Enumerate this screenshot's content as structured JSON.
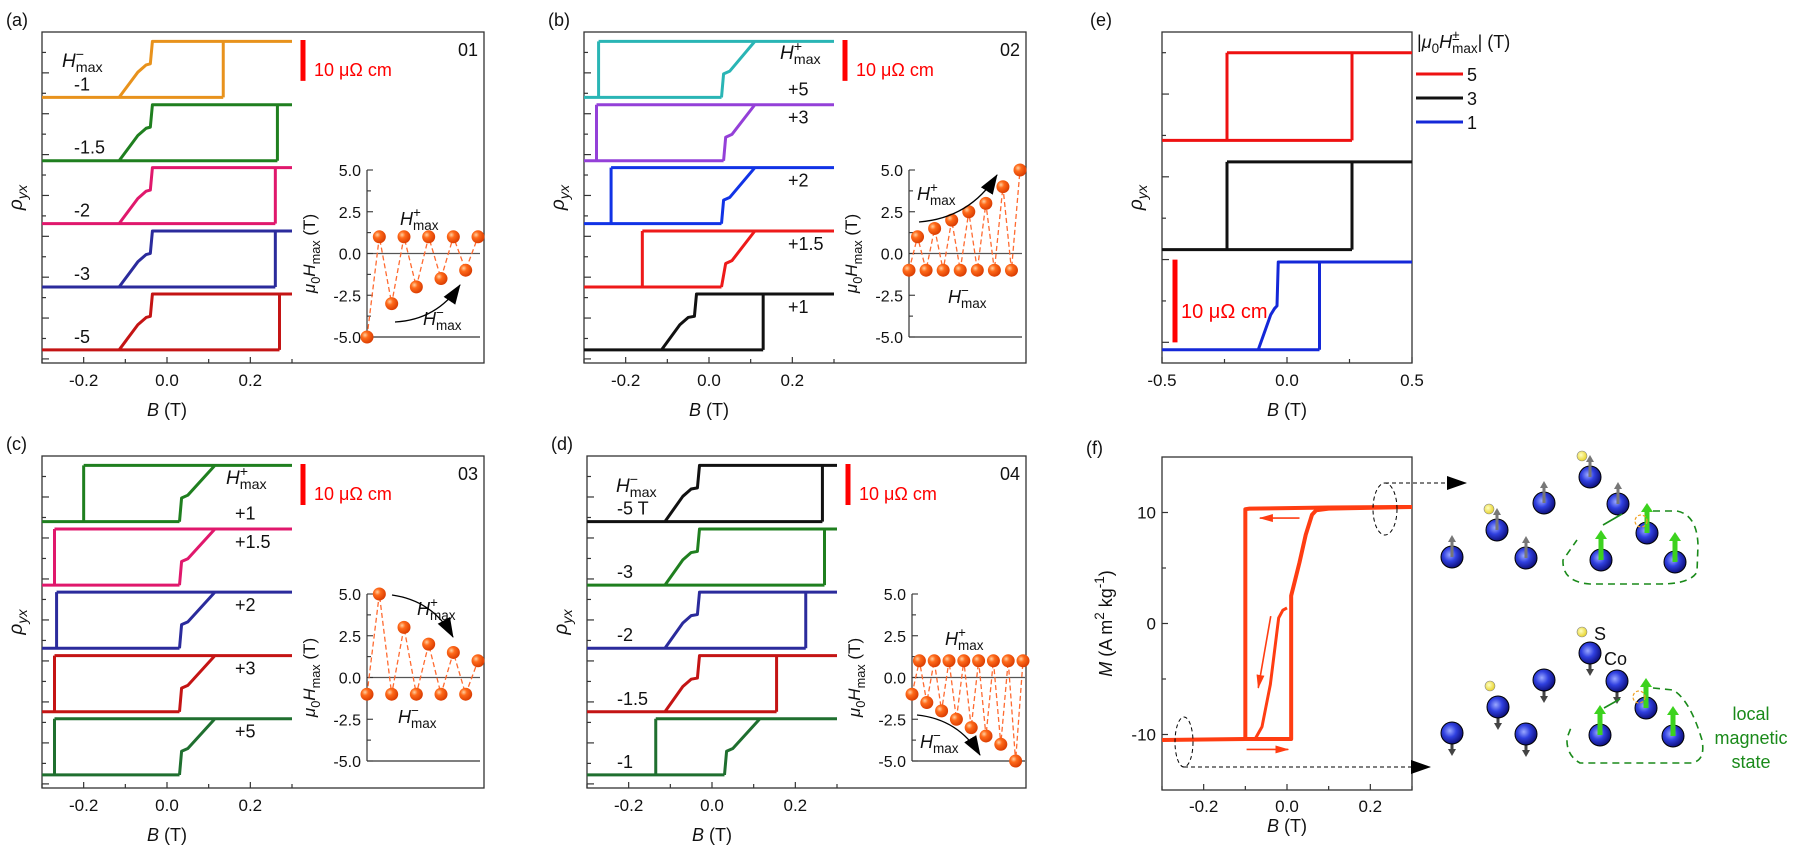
{
  "labels": {
    "rho": [
      {
        "t": "ρ",
        "i": 1
      },
      {
        "t": "yx",
        "sub": 1,
        "i": 1
      }
    ],
    "B": [
      {
        "t": "B",
        "i": 1
      },
      {
        "t": " (T)"
      }
    ],
    "inset_y": [
      {
        "t": "μ",
        "i": 1
      },
      {
        "t": "0",
        "sub": 1
      },
      {
        "t": "H",
        "i": 1
      },
      {
        "t": "max",
        "sub": 1
      },
      {
        "t": " (T)"
      }
    ],
    "H_plus": [
      {
        "t": "H",
        "i": 1
      },
      {
        "t": "+",
        "sup": 1
      },
      {
        "t": "max",
        "sub": 1
      }
    ],
    "H_minus": [
      {
        "t": "H",
        "i": 1
      },
      {
        "t": "−",
        "sup": 1
      },
      {
        "t": "max",
        "sub": 1
      }
    ],
    "M": [
      {
        "t": "M",
        "i": 1
      },
      {
        "t": " (A m"
      },
      {
        "t": "2",
        "sup": 1
      },
      {
        "t": " kg"
      },
      {
        "t": "-1",
        "sup": 1
      },
      {
        "t": ")"
      }
    ],
    "scalebar": "10 μΩ cm"
  },
  "chart_data": [
    {
      "panel": "(a)",
      "id_label": "01",
      "type": "line",
      "xlim": [
        -0.3,
        0.3
      ],
      "xticks": [
        -0.2,
        0,
        0.2
      ],
      "xtick_labels": [
        "-0.2",
        "0.0",
        "0.2"
      ],
      "ylim_uohm_cm": [
        0,
        81
      ],
      "scalebar_value": 10,
      "header": "H_minus",
      "label_side": "left",
      "curves": [
        {
          "label": "-1",
          "color": "#e8921c",
          "base": 65,
          "height": 13.7,
          "down": 0.135,
          "up": [
            [
              -0.115,
              0
            ],
            [
              -0.07,
              0.45
            ],
            [
              -0.05,
              0.58
            ],
            [
              -0.04,
              0.6
            ],
            [
              -0.035,
              1
            ]
          ]
        },
        {
          "label": "-1.5",
          "color": "#1f7f1f",
          "base": 49.5,
          "height": 13.7,
          "down": 0.265,
          "up": [
            [
              -0.115,
              0
            ],
            [
              -0.07,
              0.45
            ],
            [
              -0.05,
              0.58
            ],
            [
              -0.04,
              0.6
            ],
            [
              -0.035,
              1
            ]
          ]
        },
        {
          "label": "-2",
          "color": "#e0186c",
          "base": 34.1,
          "height": 13.7,
          "down": 0.26,
          "up": [
            [
              -0.115,
              0
            ],
            [
              -0.07,
              0.45
            ],
            [
              -0.05,
              0.58
            ],
            [
              -0.04,
              0.6
            ],
            [
              -0.035,
              1
            ]
          ]
        },
        {
          "label": "-3",
          "color": "#2b2b9c",
          "base": 18.6,
          "height": 13.7,
          "down": 0.26,
          "up": [
            [
              -0.115,
              0
            ],
            [
              -0.07,
              0.45
            ],
            [
              -0.05,
              0.58
            ],
            [
              -0.04,
              0.6
            ],
            [
              -0.035,
              1
            ]
          ]
        },
        {
          "label": "-5",
          "color": "#c41414",
          "base": 3.2,
          "height": 13.7,
          "down": 0.27,
          "up": [
            [
              -0.115,
              0
            ],
            [
              -0.07,
              0.45
            ],
            [
              -0.05,
              0.58
            ],
            [
              -0.04,
              0.6
            ],
            [
              -0.035,
              1
            ]
          ]
        }
      ],
      "inset": {
        "ylim": [
          -5,
          5
        ],
        "yticks": [
          5,
          2.5,
          0,
          -2.5,
          -5
        ],
        "ytick_labels": [
          "5.0",
          "2.5",
          "0.0",
          "-2.5",
          "-5.0"
        ],
        "values": [
          -5,
          1,
          -3,
          1,
          -2,
          1,
          -1.5,
          1,
          -1,
          1
        ],
        "color": "#ff5a12"
      }
    },
    {
      "panel": "(b)",
      "id_label": "02",
      "type": "line",
      "xlim": [
        -0.3,
        0.3
      ],
      "xticks": [
        -0.2,
        0,
        0.2
      ],
      "xtick_labels": [
        "-0.2",
        "0.0",
        "0.2"
      ],
      "ylim_uohm_cm": [
        0,
        81
      ],
      "scalebar_value": 10,
      "header": "H_plus",
      "label_side": "right",
      "curves": [
        {
          "label": "+5",
          "color": "#2ab5b5",
          "base": 65,
          "height": 13.7,
          "down": -0.265,
          "up": [
            [
              0.03,
              0
            ],
            [
              0.035,
              0.42
            ],
            [
              0.05,
              0.47
            ],
            [
              0.11,
              1
            ]
          ]
        },
        {
          "label": "+3",
          "color": "#9440d8",
          "base": 49.5,
          "height": 13.7,
          "down": -0.27,
          "up": [
            [
              0.035,
              0
            ],
            [
              0.04,
              0.42
            ],
            [
              0.055,
              0.47
            ],
            [
              0.11,
              1
            ]
          ]
        },
        {
          "label": "+2",
          "color": "#1133e6",
          "base": 34.1,
          "height": 13.7,
          "down": -0.235,
          "up": [
            [
              0.03,
              0
            ],
            [
              0.035,
              0.42
            ],
            [
              0.05,
              0.47
            ],
            [
              0.11,
              1
            ]
          ]
        },
        {
          "label": "+1.5",
          "color": "#ee1a1a",
          "base": 18.6,
          "height": 13.7,
          "down": -0.16,
          "up": [
            [
              0.03,
              0
            ],
            [
              0.04,
              0.42
            ],
            [
              0.055,
              0.47
            ],
            [
              0.11,
              1
            ]
          ]
        },
        {
          "label": "+1",
          "color": "#111111",
          "base": 3.2,
          "height": 13.7,
          "down": 0.13,
          "up": [
            [
              -0.114,
              0
            ],
            [
              -0.07,
              0.45
            ],
            [
              -0.05,
              0.58
            ],
            [
              -0.035,
              0.6
            ],
            [
              -0.03,
              1
            ]
          ]
        }
      ],
      "inset": {
        "ylim": [
          -5,
          5
        ],
        "yticks": [
          5,
          2.5,
          0,
          -2.5,
          -5
        ],
        "ytick_labels": [
          "5.0",
          "2.5",
          "0.0",
          "-2.5",
          "-5.0"
        ],
        "values": [
          -1,
          1,
          -1,
          1.5,
          -1,
          2,
          -1,
          2.5,
          -1,
          3,
          -1,
          4,
          -1,
          5
        ],
        "color": "#ff5a12"
      }
    },
    {
      "panel": "(c)",
      "id_label": "03",
      "type": "line",
      "xlim": [
        -0.3,
        0.3
      ],
      "xticks": [
        -0.2,
        0,
        0.2
      ],
      "xtick_labels": [
        "-0.2",
        "0.0",
        "0.2"
      ],
      "ylim_uohm_cm": [
        0,
        81
      ],
      "scalebar_value": 10,
      "header": "H_plus",
      "label_side": "right",
      "curves": [
        {
          "label": "+1",
          "color": "#1f7f1f",
          "base": 65,
          "height": 13.7,
          "down": -0.2,
          "up": [
            [
              0.03,
              0
            ],
            [
              0.035,
              0.42
            ],
            [
              0.05,
              0.47
            ],
            [
              0.115,
              1
            ]
          ]
        },
        {
          "label": "+1.5",
          "color": "#e0186c",
          "base": 49.5,
          "height": 13.7,
          "down": -0.27,
          "up": [
            [
              0.03,
              0
            ],
            [
              0.035,
              0.42
            ],
            [
              0.05,
              0.47
            ],
            [
              0.115,
              1
            ]
          ]
        },
        {
          "label": "+2",
          "color": "#2b2b9c",
          "base": 34.1,
          "height": 13.7,
          "down": -0.265,
          "up": [
            [
              0.03,
              0
            ],
            [
              0.035,
              0.42
            ],
            [
              0.05,
              0.47
            ],
            [
              0.115,
              1
            ]
          ]
        },
        {
          "label": "+3",
          "color": "#c41414",
          "base": 18.6,
          "height": 13.7,
          "down": -0.27,
          "up": [
            [
              0.03,
              0
            ],
            [
              0.035,
              0.42
            ],
            [
              0.05,
              0.47
            ],
            [
              0.115,
              1
            ]
          ]
        },
        {
          "label": "+5",
          "color": "#1f6f2f",
          "base": 3.2,
          "height": 13.7,
          "down": -0.27,
          "up": [
            [
              0.03,
              0
            ],
            [
              0.035,
              0.42
            ],
            [
              0.05,
              0.47
            ],
            [
              0.115,
              1
            ]
          ]
        }
      ],
      "inset": {
        "ylim": [
          -5,
          5
        ],
        "yticks": [
          5,
          2.5,
          0,
          -2.5,
          -5
        ],
        "ytick_labels": [
          "5.0",
          "2.5",
          "0.0",
          "-2.5",
          "-5.0"
        ],
        "values": [
          -1,
          5,
          -1,
          3,
          -1,
          2,
          -1,
          1.5,
          -1,
          1
        ],
        "color": "#ff5a12"
      }
    },
    {
      "panel": "(d)",
      "id_label": "04",
      "type": "line",
      "xlim": [
        -0.3,
        0.3
      ],
      "xticks": [
        -0.2,
        0,
        0.2
      ],
      "xtick_labels": [
        "-0.2",
        "0.0",
        "0.2"
      ],
      "ylim_uohm_cm": [
        0,
        81
      ],
      "scalebar_value": 10,
      "header": "H_minus",
      "label_side": "left",
      "curves": [
        {
          "label": "-5 T",
          "color": "#111111",
          "base": 65,
          "height": 13.7,
          "down": 0.265,
          "up": [
            [
              -0.113,
              0
            ],
            [
              -0.07,
              0.45
            ],
            [
              -0.05,
              0.58
            ],
            [
              -0.035,
              0.6
            ],
            [
              -0.03,
              1
            ]
          ]
        },
        {
          "label": "-3",
          "color": "#1f7f1f",
          "base": 49.5,
          "height": 13.7,
          "down": 0.27,
          "up": [
            [
              -0.113,
              0
            ],
            [
              -0.07,
              0.45
            ],
            [
              -0.05,
              0.58
            ],
            [
              -0.035,
              0.6
            ],
            [
              -0.03,
              1
            ]
          ]
        },
        {
          "label": "-2",
          "color": "#2b2b9c",
          "base": 34.1,
          "height": 13.7,
          "down": 0.225,
          "up": [
            [
              -0.113,
              0
            ],
            [
              -0.07,
              0.45
            ],
            [
              -0.05,
              0.58
            ],
            [
              -0.035,
              0.6
            ],
            [
              -0.03,
              1
            ]
          ]
        },
        {
          "label": "-1.5",
          "color": "#c41414",
          "base": 18.6,
          "height": 13.7,
          "down": 0.155,
          "up": [
            [
              -0.113,
              0
            ],
            [
              -0.07,
              0.45
            ],
            [
              -0.05,
              0.58
            ],
            [
              -0.035,
              0.6
            ],
            [
              -0.03,
              1
            ]
          ]
        },
        {
          "label": "-1",
          "color": "#1f6f2f",
          "base": 3.2,
          "height": 13.7,
          "down": -0.135,
          "up": [
            [
              0.03,
              0
            ],
            [
              0.035,
              0.42
            ],
            [
              0.05,
              0.47
            ],
            [
              0.115,
              1
            ]
          ]
        }
      ],
      "inset": {
        "ylim": [
          -5,
          5
        ],
        "yticks": [
          5,
          2.5,
          0,
          -2.5,
          -5
        ],
        "ytick_labels": [
          "5.0",
          "2.5",
          "0.0",
          "-2.5",
          "-5.0"
        ],
        "values": [
          -1,
          1,
          -1.5,
          1,
          -2,
          1,
          -2.5,
          1,
          -3,
          1,
          -3.5,
          1,
          -4,
          1,
          -5,
          1
        ],
        "color": "#ff5a12"
      }
    },
    {
      "panel": "(e)",
      "type": "line",
      "xlim": [
        -0.5,
        0.5
      ],
      "xticks": [
        -0.5,
        0,
        0.5
      ],
      "xtick_labels": [
        "-0.5",
        "0.0",
        "0.5"
      ],
      "ylim_uohm_cm": [
        0,
        40
      ],
      "scalebar_value": 10,
      "legend": {
        "title": [
          {
            "t": "|"
          },
          {
            "t": "μ",
            "i": 1
          },
          {
            "t": "0",
            "sub": 1
          },
          {
            "t": "H",
            "i": 1
          },
          {
            "t": "±",
            "sup": 1
          },
          {
            "t": "max",
            "sub": 1
          },
          {
            "t": "| (T)"
          }
        ],
        "placement": "right-outside"
      },
      "curves": [
        {
          "label": "5",
          "color": "#ee1111",
          "base": 26.9,
          "height": 10.6,
          "down": -0.24,
          "up": [
            [
              0.26,
              0
            ],
            [
              0.26,
              1
            ]
          ]
        },
        {
          "label": "3",
          "color": "#111111",
          "base": 13.7,
          "height": 10.6,
          "down": -0.24,
          "up": [
            [
              0.26,
              0
            ],
            [
              0.26,
              1
            ]
          ]
        },
        {
          "label": "1",
          "color": "#1428d8",
          "base": 1.6,
          "height": 10.6,
          "down": 0.13,
          "up": [
            [
              -0.115,
              0
            ],
            [
              -0.065,
              0.4
            ],
            [
              -0.05,
              0.47
            ],
            [
              -0.04,
              0.5
            ],
            [
              -0.035,
              1
            ]
          ]
        }
      ]
    },
    {
      "panel": "(f)",
      "type": "line",
      "xlim": [
        -0.3,
        0.3
      ],
      "xticks": [
        -0.2,
        0,
        0.2
      ],
      "xtick_labels": [
        "-0.2",
        "0.0",
        "0.2"
      ],
      "ylim": [
        -15,
        15
      ],
      "yticks": [
        10,
        0,
        -10
      ],
      "ytick_labels": [
        "10",
        "0",
        "-10"
      ],
      "color": "#ff3d12",
      "series": [
        {
          "x": [
            0.3,
            0.1,
            -0.09,
            -0.1,
            -0.1
          ],
          "y": [
            10.5,
            10.45,
            10.35,
            10.3,
            -10.3
          ]
        },
        {
          "x": [
            -0.3,
            -0.1,
            0.01,
            0.01,
            0.02,
            0.03,
            0.045,
            0.06,
            0.07,
            0.1,
            0.3
          ],
          "y": [
            -10.5,
            -10.4,
            -10.4,
            2.5,
            4,
            5.5,
            8,
            9.8,
            10.2,
            10.35,
            10.5
          ]
        },
        {
          "x": [
            0,
            -0.01,
            -0.02,
            -0.035,
            -0.04,
            -0.06,
            -0.075
          ],
          "y": [
            1.4,
            1.2,
            0.5,
            -4,
            -5.5,
            -9.3,
            -10.3
          ]
        }
      ],
      "arrows": [
        {
          "from": [
            0.03,
            9.5
          ],
          "to": [
            -0.065,
            9.5
          ]
        },
        {
          "from": [
            -0.097,
            -11.35
          ],
          "to": [
            0.003,
            -11.35
          ]
        },
        {
          "from": [
            -0.039,
            0.66
          ],
          "to": [
            -0.069,
            -5.8
          ]
        }
      ],
      "schematic": {
        "S_label": "S",
        "Co_label": "Co",
        "local_state_lines": [
          "local",
          "magnetic",
          "state"
        ],
        "local_state_color": "#1a8a1a"
      }
    }
  ]
}
